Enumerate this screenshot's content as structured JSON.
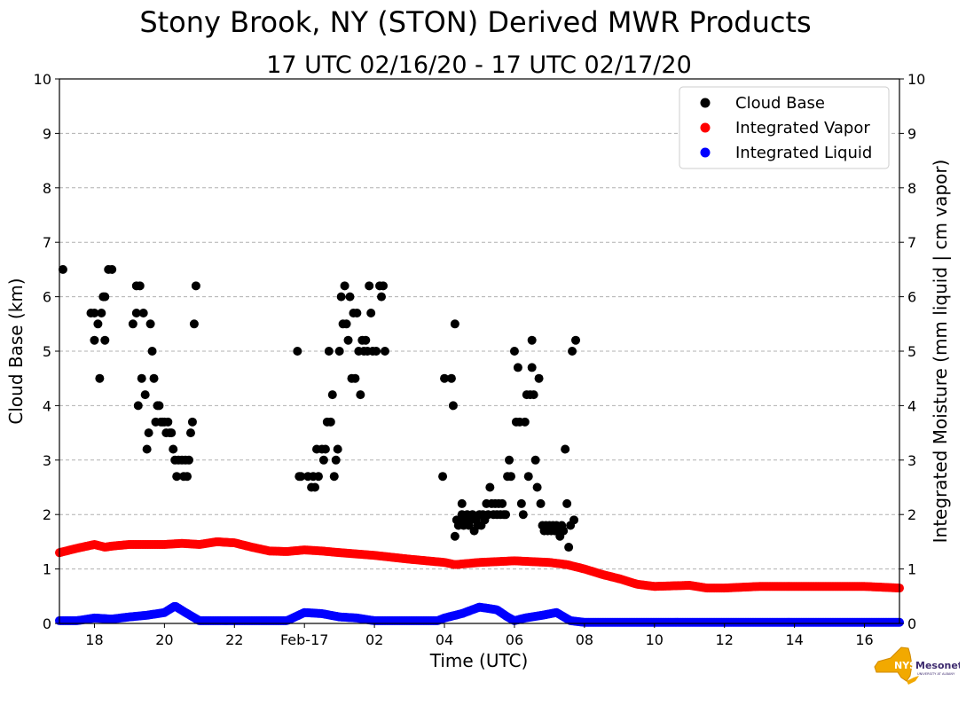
{
  "chart_data": {
    "type": "scatter",
    "title": "Stony Brook, NY (STON) Derived MWR Products",
    "subtitle": "17 UTC 02/16/20 - 17 UTC 02/17/20",
    "xlabel": "Time (UTC)",
    "ylabel": "Cloud Base (km)",
    "ylabel_right": "Integrated Moisture (mm liquid | cm vapor)",
    "xlim": [
      17,
      41
    ],
    "ylim": [
      0,
      10
    ],
    "grid": "horizontal dashed",
    "legend_position": "upper-right",
    "x_ticks": [
      {
        "value": 18,
        "label": "18"
      },
      {
        "value": 20,
        "label": "20"
      },
      {
        "value": 22,
        "label": "22"
      },
      {
        "value": 24,
        "label": "Feb-17"
      },
      {
        "value": 26,
        "label": "02"
      },
      {
        "value": 28,
        "label": "04"
      },
      {
        "value": 30,
        "label": "06"
      },
      {
        "value": 32,
        "label": "08"
      },
      {
        "value": 34,
        "label": "10"
      },
      {
        "value": 36,
        "label": "12"
      },
      {
        "value": 38,
        "label": "14"
      },
      {
        "value": 40,
        "label": "16"
      }
    ],
    "y_ticks": [
      0,
      1,
      2,
      3,
      4,
      5,
      6,
      7,
      8,
      9,
      10
    ],
    "series": [
      {
        "name": "Cloud Base",
        "color": "#000000",
        "points": [
          [
            17.1,
            6.5
          ],
          [
            17.9,
            5.7
          ],
          [
            18.0,
            5.2
          ],
          [
            18.0,
            5.7
          ],
          [
            18.1,
            5.5
          ],
          [
            18.15,
            4.5
          ],
          [
            18.2,
            5.7
          ],
          [
            18.25,
            6.0
          ],
          [
            18.3,
            5.2
          ],
          [
            18.3,
            6.0
          ],
          [
            18.4,
            6.5
          ],
          [
            18.5,
            6.5
          ],
          [
            19.1,
            5.5
          ],
          [
            19.2,
            6.2
          ],
          [
            19.2,
            5.7
          ],
          [
            19.25,
            4.0
          ],
          [
            19.3,
            6.2
          ],
          [
            19.35,
            4.5
          ],
          [
            19.4,
            5.7
          ],
          [
            19.45,
            4.2
          ],
          [
            19.5,
            3.2
          ],
          [
            19.55,
            3.5
          ],
          [
            19.6,
            5.5
          ],
          [
            19.65,
            5.0
          ],
          [
            19.7,
            4.5
          ],
          [
            19.75,
            3.7
          ],
          [
            19.8,
            4.0
          ],
          [
            19.85,
            4.0
          ],
          [
            19.9,
            3.7
          ],
          [
            19.95,
            3.7
          ],
          [
            20.0,
            3.7
          ],
          [
            20.05,
            3.5
          ],
          [
            20.1,
            3.7
          ],
          [
            20.15,
            3.5
          ],
          [
            20.2,
            3.5
          ],
          [
            20.25,
            3.2
          ],
          [
            20.3,
            3.0
          ],
          [
            20.35,
            2.7
          ],
          [
            20.4,
            3.0
          ],
          [
            20.5,
            3.0
          ],
          [
            20.55,
            2.7
          ],
          [
            20.6,
            3.0
          ],
          [
            20.65,
            2.7
          ],
          [
            20.7,
            3.0
          ],
          [
            20.75,
            3.5
          ],
          [
            20.8,
            3.7
          ],
          [
            20.85,
            5.5
          ],
          [
            20.9,
            6.2
          ],
          [
            23.8,
            5.0
          ],
          [
            23.85,
            2.7
          ],
          [
            23.9,
            2.7
          ],
          [
            24.1,
            2.7
          ],
          [
            24.2,
            2.5
          ],
          [
            24.25,
            2.7
          ],
          [
            24.3,
            2.5
          ],
          [
            24.35,
            3.2
          ],
          [
            24.4,
            2.7
          ],
          [
            24.5,
            3.2
          ],
          [
            24.55,
            3.0
          ],
          [
            24.6,
            3.2
          ],
          [
            24.65,
            3.7
          ],
          [
            24.7,
            5.0
          ],
          [
            24.75,
            3.7
          ],
          [
            24.8,
            4.2
          ],
          [
            24.85,
            2.7
          ],
          [
            24.9,
            3.0
          ],
          [
            24.95,
            3.2
          ],
          [
            25.0,
            5.0
          ],
          [
            25.05,
            6.0
          ],
          [
            25.1,
            5.5
          ],
          [
            25.15,
            6.2
          ],
          [
            25.2,
            5.5
          ],
          [
            25.25,
            5.2
          ],
          [
            25.3,
            6.0
          ],
          [
            25.35,
            4.5
          ],
          [
            25.4,
            5.7
          ],
          [
            25.45,
            4.5
          ],
          [
            25.5,
            5.7
          ],
          [
            25.55,
            5.0
          ],
          [
            25.6,
            4.2
          ],
          [
            25.65,
            5.2
          ],
          [
            25.7,
            5.0
          ],
          [
            25.75,
            5.2
          ],
          [
            25.8,
            5.0
          ],
          [
            25.85,
            6.2
          ],
          [
            25.9,
            5.7
          ],
          [
            25.95,
            5.0
          ],
          [
            26.05,
            5.0
          ],
          [
            26.15,
            6.2
          ],
          [
            26.2,
            6.0
          ],
          [
            26.25,
            6.2
          ],
          [
            26.3,
            5.0
          ],
          [
            27.95,
            2.7
          ],
          [
            28.0,
            4.5
          ],
          [
            28.2,
            4.5
          ],
          [
            28.25,
            4.0
          ],
          [
            28.3,
            5.5
          ],
          [
            28.3,
            1.6
          ],
          [
            28.35,
            1.9
          ],
          [
            28.4,
            1.8
          ],
          [
            28.45,
            1.9
          ],
          [
            28.5,
            2.0
          ],
          [
            28.5,
            2.2
          ],
          [
            28.55,
            1.8
          ],
          [
            28.6,
            1.9
          ],
          [
            28.65,
            2.0
          ],
          [
            28.7,
            1.8
          ],
          [
            28.75,
            1.9
          ],
          [
            28.8,
            2.0
          ],
          [
            28.85,
            1.7
          ],
          [
            28.9,
            1.9
          ],
          [
            28.95,
            1.8
          ],
          [
            29.0,
            2.0
          ],
          [
            29.05,
            1.8
          ],
          [
            29.1,
            2.0
          ],
          [
            29.15,
            1.9
          ],
          [
            29.2,
            2.2
          ],
          [
            29.25,
            2.0
          ],
          [
            29.3,
            2.5
          ],
          [
            29.35,
            2.2
          ],
          [
            29.4,
            2.0
          ],
          [
            29.45,
            2.2
          ],
          [
            29.5,
            2.0
          ],
          [
            29.55,
            2.2
          ],
          [
            29.6,
            2.0
          ],
          [
            29.65,
            2.2
          ],
          [
            29.7,
            2.0
          ],
          [
            29.75,
            2.0
          ],
          [
            29.8,
            2.7
          ],
          [
            29.85,
            3.0
          ],
          [
            29.9,
            2.7
          ],
          [
            30.0,
            5.0
          ],
          [
            30.05,
            3.7
          ],
          [
            30.1,
            4.7
          ],
          [
            30.15,
            3.7
          ],
          [
            30.2,
            2.2
          ],
          [
            30.25,
            2.0
          ],
          [
            30.3,
            3.7
          ],
          [
            30.35,
            4.2
          ],
          [
            30.4,
            2.7
          ],
          [
            30.45,
            4.2
          ],
          [
            30.5,
            5.2
          ],
          [
            30.5,
            4.7
          ],
          [
            30.55,
            4.2
          ],
          [
            30.6,
            3.0
          ],
          [
            30.65,
            2.5
          ],
          [
            30.7,
            4.5
          ],
          [
            30.75,
            2.2
          ],
          [
            30.8,
            1.8
          ],
          [
            30.85,
            1.7
          ],
          [
            30.9,
            1.8
          ],
          [
            30.95,
            1.7
          ],
          [
            31.0,
            1.8
          ],
          [
            31.05,
            1.7
          ],
          [
            31.1,
            1.8
          ],
          [
            31.15,
            1.7
          ],
          [
            31.2,
            1.8
          ],
          [
            31.25,
            1.7
          ],
          [
            31.3,
            1.6
          ],
          [
            31.35,
            1.8
          ],
          [
            31.4,
            1.7
          ],
          [
            31.45,
            3.2
          ],
          [
            31.5,
            2.2
          ],
          [
            31.55,
            1.4
          ],
          [
            31.6,
            1.8
          ],
          [
            31.65,
            5.0
          ],
          [
            31.7,
            1.9
          ],
          [
            31.75,
            5.2
          ]
        ]
      },
      {
        "name": "Integrated Vapor",
        "color": "#ff0000",
        "curve": [
          [
            17.0,
            1.3
          ],
          [
            17.5,
            1.38
          ],
          [
            18.0,
            1.45
          ],
          [
            18.3,
            1.4
          ],
          [
            18.5,
            1.42
          ],
          [
            19.0,
            1.45
          ],
          [
            20.0,
            1.45
          ],
          [
            20.5,
            1.47
          ],
          [
            21.0,
            1.45
          ],
          [
            21.5,
            1.5
          ],
          [
            22.0,
            1.48
          ],
          [
            22.5,
            1.4
          ],
          [
            23.0,
            1.33
          ],
          [
            23.5,
            1.32
          ],
          [
            24.0,
            1.35
          ],
          [
            24.5,
            1.33
          ],
          [
            25.0,
            1.3
          ],
          [
            26.0,
            1.25
          ],
          [
            27.0,
            1.18
          ],
          [
            28.0,
            1.12
          ],
          [
            28.3,
            1.08
          ],
          [
            29.0,
            1.12
          ],
          [
            30.0,
            1.15
          ],
          [
            31.0,
            1.12
          ],
          [
            31.5,
            1.08
          ],
          [
            32.0,
            1.0
          ],
          [
            32.5,
            0.9
          ],
          [
            33.0,
            0.82
          ],
          [
            33.5,
            0.72
          ],
          [
            34.0,
            0.68
          ],
          [
            35.0,
            0.7
          ],
          [
            35.5,
            0.65
          ],
          [
            36.0,
            0.65
          ],
          [
            37.0,
            0.68
          ],
          [
            38.0,
            0.68
          ],
          [
            39.0,
            0.68
          ],
          [
            40.0,
            0.68
          ],
          [
            41.0,
            0.65
          ]
        ]
      },
      {
        "name": "Integrated Liquid",
        "color": "#0000ff",
        "curve": [
          [
            17.0,
            0.05
          ],
          [
            17.5,
            0.05
          ],
          [
            18.0,
            0.1
          ],
          [
            18.5,
            0.08
          ],
          [
            19.0,
            0.12
          ],
          [
            19.5,
            0.15
          ],
          [
            20.0,
            0.2
          ],
          [
            20.3,
            0.32
          ],
          [
            20.6,
            0.2
          ],
          [
            21.0,
            0.05
          ],
          [
            22.0,
            0.05
          ],
          [
            23.0,
            0.05
          ],
          [
            23.5,
            0.05
          ],
          [
            24.0,
            0.2
          ],
          [
            24.5,
            0.18
          ],
          [
            25.0,
            0.12
          ],
          [
            25.5,
            0.1
          ],
          [
            26.0,
            0.05
          ],
          [
            27.0,
            0.05
          ],
          [
            27.8,
            0.05
          ],
          [
            28.0,
            0.1
          ],
          [
            28.5,
            0.18
          ],
          [
            29.0,
            0.3
          ],
          [
            29.5,
            0.25
          ],
          [
            29.8,
            0.12
          ],
          [
            30.0,
            0.05
          ],
          [
            30.3,
            0.1
          ],
          [
            30.8,
            0.15
          ],
          [
            31.2,
            0.2
          ],
          [
            31.6,
            0.05
          ],
          [
            32.0,
            0.02
          ],
          [
            41.0,
            0.02
          ]
        ]
      }
    ]
  },
  "logo": {
    "brand": "NYS",
    "name": "Mesonet",
    "tagline": "UNIVERSITY AT ALBANY"
  }
}
